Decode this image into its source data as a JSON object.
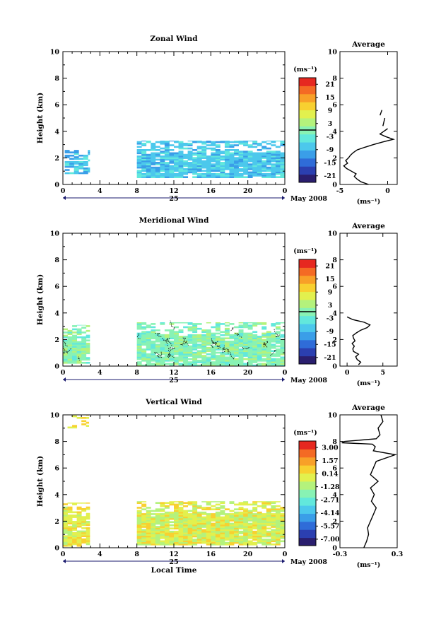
{
  "colors": {
    "scale": [
      "#2a1e6e",
      "#2b3fb0",
      "#2f6cd8",
      "#3a9ee8",
      "#4cc8ec",
      "#62e8dc",
      "#88f2b4",
      "#b4f27c",
      "#e2f04e",
      "#f8d030",
      "#f8a028",
      "#f46a24",
      "#e62820"
    ]
  },
  "common": {
    "date_label": "May 2008",
    "day_label": "25",
    "xlabel": "Local Time",
    "ylabel": "Height (km)",
    "unit_label": "(ms⁻¹)",
    "avg_title": "Average",
    "avg_xlabel": "(ms⁻¹)"
  },
  "chart_data": [
    {
      "type": "heatmap",
      "title": "Zonal Wind",
      "xlabel": "Local Time",
      "ylabel": "Height (km)",
      "xlim": [
        0,
        24
      ],
      "ylim": [
        0,
        10
      ],
      "x_ticks": [
        "0",
        "4",
        "8",
        "12",
        "16",
        "20",
        "0"
      ],
      "y_ticks": [
        "0",
        "2",
        "4",
        "6",
        "8",
        "10"
      ],
      "colorbar": {
        "unit": "(ms⁻¹)",
        "labels": [
          "21",
          "15",
          "9",
          "3",
          "-3",
          "-9",
          "-15",
          "-21"
        ],
        "range": [
          -24,
          24
        ],
        "marker": 0
      },
      "blocks": [
        {
          "x": [
            0.2,
            2.9
          ],
          "y": [
            0.8,
            2.6
          ],
          "fill": 0.85,
          "seed": 3,
          "colors": [
            4,
            3,
            4,
            5
          ]
        },
        {
          "x": [
            8.0,
            24.0
          ],
          "y": [
            0.5,
            3.3
          ],
          "fill": 0.92,
          "seed": 7,
          "colors": [
            4,
            4,
            3,
            4,
            5
          ]
        }
      ],
      "contours": false,
      "average": {
        "xlim": [
          -5,
          1
        ],
        "ticks": [
          "-5",
          "0"
        ],
        "profile": [
          [
            0.0,
            -2.0
          ],
          [
            0.2,
            -2.8
          ],
          [
            0.4,
            -3.2
          ],
          [
            0.6,
            -3.5
          ],
          [
            0.8,
            -3.3
          ],
          [
            1.0,
            -3.8
          ],
          [
            1.2,
            -4.3
          ],
          [
            1.4,
            -4.6
          ],
          [
            1.6,
            -4.2
          ],
          [
            1.8,
            -4.4
          ],
          [
            2.0,
            -4.1
          ],
          [
            2.2,
            -3.9
          ],
          [
            2.4,
            -3.6
          ],
          [
            2.6,
            -3.2
          ],
          [
            2.8,
            -2.4
          ],
          [
            3.0,
            -1.5
          ],
          [
            3.2,
            -0.5
          ],
          [
            3.4,
            0.6
          ],
          [
            3.6,
            -0.2
          ],
          [
            3.8,
            -0.8
          ],
          [
            4.0,
            -0.4
          ],
          [
            4.2,
            0.0
          ]
        ],
        "extra": [
          [
            [
              4.4,
              -0.5
            ],
            [
              5.0,
              -0.3
            ]
          ],
          [
            [
              5.2,
              -0.8
            ],
            [
              5.6,
              -0.6
            ]
          ]
        ]
      }
    },
    {
      "type": "heatmap",
      "title": "Meridional Wind",
      "xlabel": "Local Time",
      "ylabel": "Height (km)",
      "xlim": [
        0,
        24
      ],
      "ylim": [
        0,
        10
      ],
      "x_ticks": [
        "0",
        "4",
        "8",
        "12",
        "16",
        "20",
        "0"
      ],
      "y_ticks": [
        "0",
        "2",
        "4",
        "6",
        "8",
        "10"
      ],
      "colorbar": {
        "unit": "(ms⁻¹)",
        "labels": [
          "21",
          "15",
          "9",
          "3",
          "-3",
          "-9",
          "-15",
          "-21"
        ],
        "range": [
          -24,
          24
        ],
        "marker": 0
      },
      "blocks": [
        {
          "x": [
            0.0,
            2.9
          ],
          "y": [
            0.2,
            3.1
          ],
          "fill": 0.8,
          "seed": 11,
          "colors": [
            6,
            7,
            6,
            5
          ]
        },
        {
          "x": [
            8.0,
            24.0
          ],
          "y": [
            0.0,
            3.3
          ],
          "fill": 0.9,
          "seed": 13,
          "colors": [
            6,
            6,
            7,
            5,
            6
          ]
        }
      ],
      "contours": true,
      "average": {
        "xlim": [
          -1,
          7
        ],
        "ticks": [
          "0",
          "5"
        ],
        "profile": [
          [
            0.1,
            1.6
          ],
          [
            0.3,
            1.9
          ],
          [
            0.5,
            1.4
          ],
          [
            0.7,
            1.2
          ],
          [
            0.9,
            1.6
          ],
          [
            1.1,
            0.9
          ],
          [
            1.3,
            0.8
          ],
          [
            1.5,
            1.0
          ],
          [
            1.7,
            0.7
          ],
          [
            1.9,
            1.1
          ],
          [
            2.1,
            0.9
          ],
          [
            2.3,
            0.8
          ],
          [
            2.5,
            1.3
          ],
          [
            2.7,
            1.9
          ],
          [
            2.9,
            2.8
          ],
          [
            3.1,
            3.2
          ],
          [
            3.3,
            2.4
          ],
          [
            3.5,
            0.8
          ],
          [
            3.7,
            0.0
          ]
        ],
        "extra": []
      }
    },
    {
      "type": "heatmap",
      "title": "Vertical Wind",
      "xlabel": "Local Time",
      "ylabel": "Height (km)",
      "xlim": [
        0,
        24
      ],
      "ylim": [
        0,
        10
      ],
      "x_ticks": [
        "0",
        "4",
        "8",
        "12",
        "16",
        "20",
        "0"
      ],
      "y_ticks": [
        "0",
        "2",
        "4",
        "6",
        "8",
        "10"
      ],
      "colorbar": {
        "unit": "(ms⁻¹)",
        "labels": [
          "3.00",
          "1.57",
          "0.14",
          "-1.28",
          "-2.71",
          "-4.14",
          "-5.57",
          "-7.00"
        ],
        "range": [
          -7.7,
          3.7
        ],
        "marker": null
      },
      "blocks": [
        {
          "x": [
            0.0,
            2.9
          ],
          "y": [
            0.1,
            3.4
          ],
          "fill": 0.85,
          "seed": 17,
          "colors": [
            8,
            7,
            8,
            9
          ]
        },
        {
          "x": [
            8.0,
            24.0
          ],
          "y": [
            0.2,
            3.5
          ],
          "fill": 0.92,
          "seed": 19,
          "colors": [
            7,
            8,
            8,
            9,
            7
          ]
        },
        {
          "x": [
            0.5,
            2.8
          ],
          "y": [
            9.0,
            10.0
          ],
          "fill": 0.35,
          "seed": 23,
          "colors": [
            8,
            9
          ]
        }
      ],
      "contours": false,
      "average": {
        "xlim": [
          -0.3,
          0.3
        ],
        "ticks": [
          "-0.3",
          "0.3"
        ],
        "profile": [
          [
            0.0,
            -0.05
          ],
          [
            0.5,
            -0.02
          ],
          [
            1.0,
            0.0
          ],
          [
            1.5,
            -0.01
          ],
          [
            2.0,
            0.02
          ],
          [
            2.5,
            0.05
          ],
          [
            3.0,
            0.08
          ],
          [
            3.5,
            0.03
          ],
          [
            4.0,
            0.06
          ],
          [
            4.5,
            0.02
          ],
          [
            5.0,
            0.1
          ],
          [
            5.5,
            0.02
          ],
          [
            6.0,
            0.05
          ],
          [
            6.5,
            0.08
          ],
          [
            7.0,
            0.28
          ],
          [
            7.3,
            0.05
          ],
          [
            7.6,
            0.07
          ],
          [
            7.8,
            0.04
          ],
          [
            7.9,
            -0.28
          ],
          [
            8.0,
            -0.25
          ],
          [
            8.2,
            0.08
          ],
          [
            8.5,
            0.12
          ],
          [
            9.0,
            0.1
          ],
          [
            9.5,
            0.15
          ],
          [
            10.0,
            0.13
          ]
        ],
        "extra": []
      }
    }
  ]
}
